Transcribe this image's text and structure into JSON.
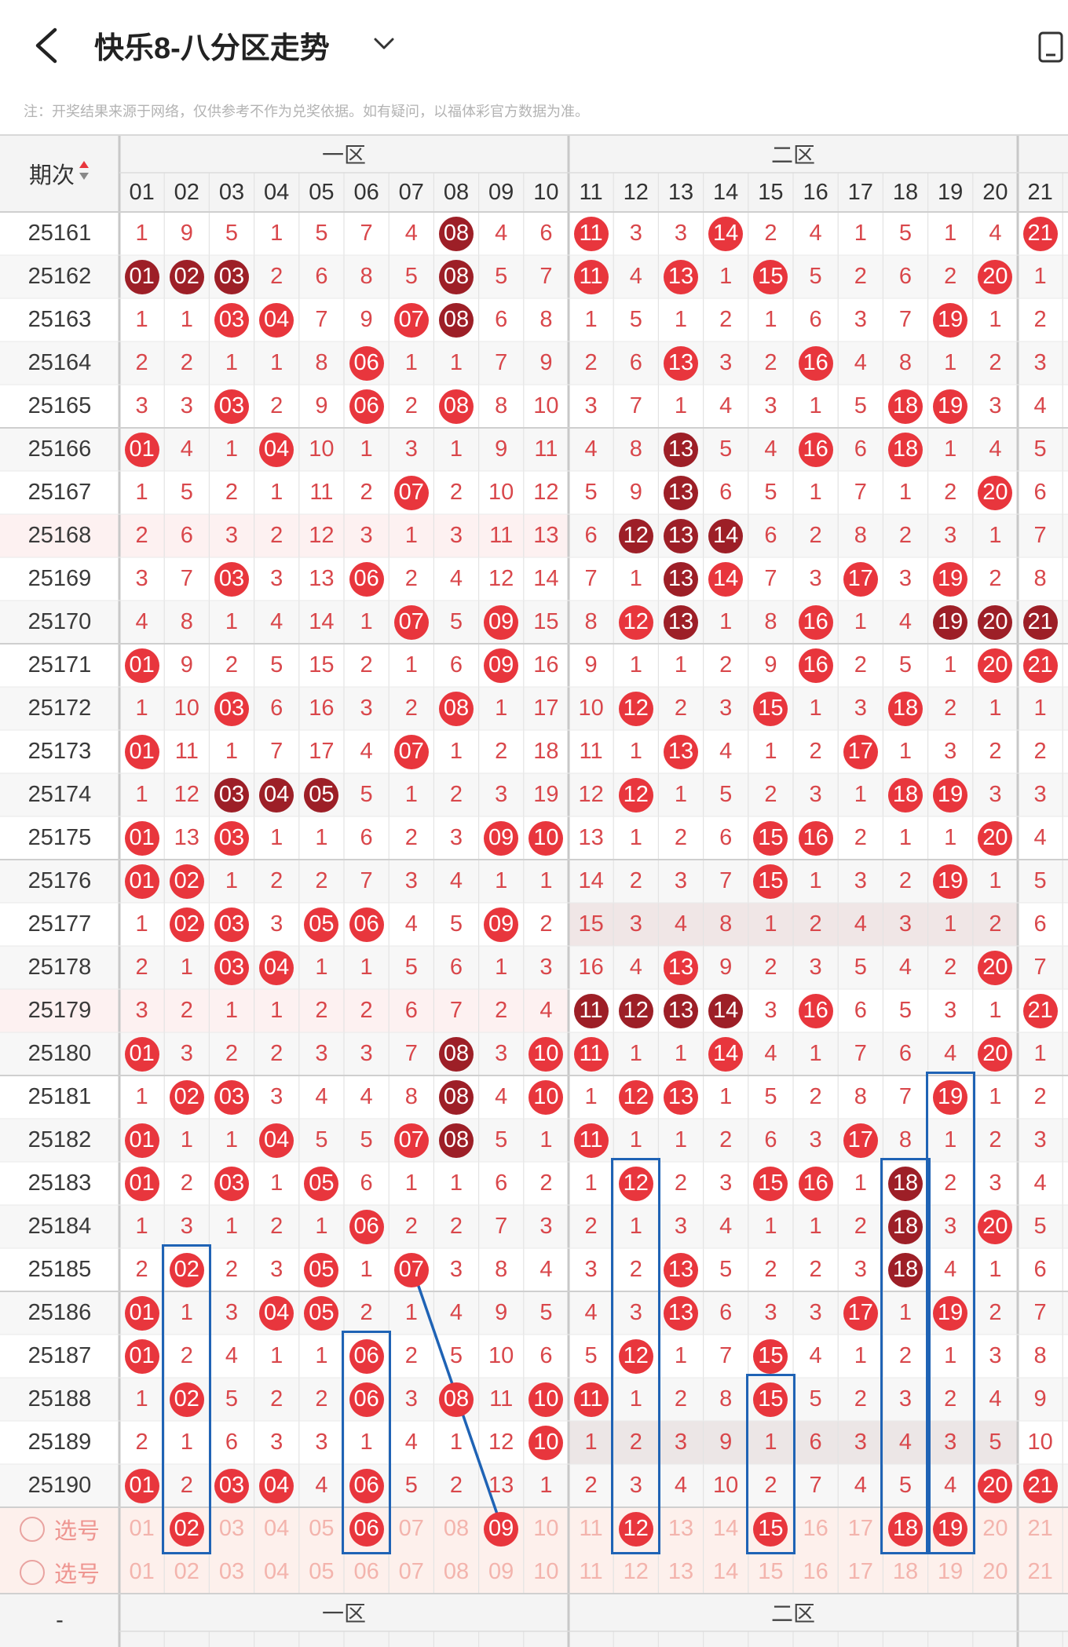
{
  "header": {
    "title": "快乐8-八分区走势",
    "back_icon": "back-arrow-icon",
    "dropdown_icon": "chevron-down-icon",
    "right_icon": "device-icon"
  },
  "notice": "注：开奖结果来源于网络，仅供参考不作为兑奖依据。如有疑问，以福体彩官方数据为准。",
  "table": {
    "period_header": "期次",
    "sort_icon": "sort-updown-icon",
    "zone1_label": "一区",
    "zone2_label": "二区",
    "columns": [
      "01",
      "02",
      "03",
      "04",
      "05",
      "06",
      "07",
      "08",
      "09",
      "10",
      "11",
      "12",
      "13",
      "14",
      "15",
      "16",
      "17",
      "18",
      "19",
      "20",
      "21"
    ],
    "rows": [
      {
        "period": "25161",
        "cells": [
          "1",
          "9",
          "5",
          "1",
          "5",
          "7",
          "4",
          "08d",
          "4",
          "6",
          "11r",
          "3",
          "3",
          "14r",
          "2",
          "4",
          "1",
          "5",
          "1",
          "4",
          "21r"
        ]
      },
      {
        "period": "25162",
        "cells": [
          "01d",
          "02d",
          "03d",
          "2",
          "6",
          "8",
          "5",
          "08d",
          "5",
          "7",
          "11r",
          "4",
          "13r",
          "1",
          "15r",
          "5",
          "2",
          "6",
          "2",
          "20r",
          "1"
        ]
      },
      {
        "period": "25163",
        "cells": [
          "1",
          "1",
          "03r",
          "04r",
          "7",
          "9",
          "07r",
          "08d",
          "6",
          "8",
          "1",
          "5",
          "1",
          "2",
          "1",
          "6",
          "3",
          "7",
          "19r",
          "1",
          "2"
        ]
      },
      {
        "period": "25164",
        "cells": [
          "2",
          "2",
          "1",
          "1",
          "8",
          "06r",
          "1",
          "1",
          "7",
          "9",
          "2",
          "6",
          "13r",
          "3",
          "2",
          "16r",
          "4",
          "8",
          "1",
          "2",
          "3"
        ]
      },
      {
        "period": "25165",
        "cells": [
          "3",
          "3",
          "03r",
          "2",
          "9",
          "06r",
          "2",
          "08r",
          "8",
          "10",
          "3",
          "7",
          "1",
          "4",
          "3",
          "1",
          "5",
          "18r",
          "19r",
          "3",
          "4"
        ]
      },
      {
        "period": "25166",
        "cells": [
          "01r",
          "4",
          "1",
          "04r",
          "10",
          "1",
          "3",
          "1",
          "9",
          "11",
          "4",
          "8",
          "13d",
          "5",
          "4",
          "16r",
          "6",
          "18r",
          "1",
          "4",
          "5"
        ]
      },
      {
        "period": "25167",
        "cells": [
          "1",
          "5",
          "2",
          "1",
          "11",
          "2",
          "07r",
          "2",
          "10",
          "12",
          "5",
          "9",
          "13d",
          "6",
          "5",
          "1",
          "7",
          "1",
          "2",
          "20r",
          "6"
        ]
      },
      {
        "period": "25168",
        "cells": [
          "2",
          "6",
          "3",
          "2",
          "12",
          "3",
          "1",
          "3",
          "11",
          "13",
          "6",
          "12d",
          "13d",
          "14d",
          "6",
          "2",
          "8",
          "2",
          "3",
          "1",
          "7"
        ]
      },
      {
        "period": "25169",
        "cells": [
          "3",
          "7",
          "03r",
          "3",
          "13",
          "06r",
          "2",
          "4",
          "12",
          "14",
          "7",
          "1",
          "13d",
          "14r",
          "7",
          "3",
          "17r",
          "3",
          "19r",
          "2",
          "8"
        ]
      },
      {
        "period": "25170",
        "cells": [
          "4",
          "8",
          "1",
          "4",
          "14",
          "1",
          "07r",
          "5",
          "09r",
          "15",
          "8",
          "12r",
          "13d",
          "1",
          "8",
          "16r",
          "1",
          "4",
          "19d",
          "20d",
          "21d"
        ]
      },
      {
        "period": "25171",
        "cells": [
          "01r",
          "9",
          "2",
          "5",
          "15",
          "2",
          "1",
          "6",
          "09r",
          "16",
          "9",
          "1",
          "1",
          "2",
          "9",
          "16r",
          "2",
          "5",
          "1",
          "20r",
          "21r"
        ]
      },
      {
        "period": "25172",
        "cells": [
          "1",
          "10",
          "03r",
          "6",
          "16",
          "3",
          "2",
          "08r",
          "1",
          "17",
          "10",
          "12r",
          "2",
          "3",
          "15r",
          "1",
          "3",
          "18r",
          "2",
          "1",
          "1"
        ]
      },
      {
        "period": "25173",
        "cells": [
          "01r",
          "11",
          "1",
          "7",
          "17",
          "4",
          "07r",
          "1",
          "2",
          "18",
          "11",
          "1",
          "13r",
          "4",
          "1",
          "2",
          "17r",
          "1",
          "3",
          "2",
          "2"
        ]
      },
      {
        "period": "25174",
        "cells": [
          "1",
          "12",
          "03d",
          "04d",
          "05d",
          "5",
          "1",
          "2",
          "3",
          "19",
          "12",
          "12r",
          "1",
          "5",
          "2",
          "3",
          "1",
          "18r",
          "19r",
          "3",
          "3"
        ]
      },
      {
        "period": "25175",
        "cells": [
          "01r",
          "13",
          "03r",
          "1",
          "1",
          "6",
          "2",
          "3",
          "09r",
          "10r",
          "13",
          "1",
          "2",
          "6",
          "15r",
          "16r",
          "2",
          "1",
          "1",
          "20r",
          "4"
        ]
      },
      {
        "period": "25176",
        "cells": [
          "01r",
          "02r",
          "1",
          "2",
          "2",
          "7",
          "3",
          "4",
          "1",
          "1",
          "14",
          "2",
          "3",
          "7",
          "15r",
          "1",
          "3",
          "2",
          "19r",
          "1",
          "5"
        ]
      },
      {
        "period": "25177",
        "cells": [
          "1",
          "02r",
          "03r",
          "3",
          "05r",
          "06r",
          "4",
          "5",
          "09r",
          "2",
          "15",
          "3",
          "4",
          "8",
          "1",
          "2",
          "4",
          "3",
          "1",
          "2",
          "6"
        ]
      },
      {
        "period": "25178",
        "cells": [
          "2",
          "1",
          "03r",
          "04r",
          "1",
          "1",
          "5",
          "6",
          "1",
          "3",
          "16",
          "4",
          "13r",
          "9",
          "2",
          "3",
          "5",
          "4",
          "2",
          "20r",
          "7"
        ]
      },
      {
        "period": "25179",
        "cells": [
          "3",
          "2",
          "1",
          "1",
          "2",
          "2",
          "6",
          "7",
          "2",
          "4",
          "11d",
          "12d",
          "13d",
          "14d",
          "3",
          "16r",
          "6",
          "5",
          "3",
          "1",
          "21r"
        ]
      },
      {
        "period": "25180",
        "cells": [
          "01r",
          "3",
          "2",
          "2",
          "3",
          "3",
          "7",
          "08d",
          "3",
          "10r",
          "11r",
          "1",
          "1",
          "14r",
          "4",
          "1",
          "7",
          "6",
          "4",
          "20r",
          "1"
        ]
      },
      {
        "period": "25181",
        "cells": [
          "1",
          "02r",
          "03r",
          "3",
          "4",
          "4",
          "8",
          "08d",
          "4",
          "10r",
          "1",
          "12r",
          "13r",
          "1",
          "5",
          "2",
          "8",
          "7",
          "19r",
          "1",
          "2"
        ]
      },
      {
        "period": "25182",
        "cells": [
          "01r",
          "1",
          "1",
          "04r",
          "5",
          "5",
          "07r",
          "08d",
          "5",
          "1",
          "11r",
          "1",
          "1",
          "2",
          "6",
          "3",
          "17r",
          "8",
          "1",
          "2",
          "3"
        ]
      },
      {
        "period": "25183",
        "cells": [
          "01r",
          "2",
          "03r",
          "1",
          "05r",
          "6",
          "1",
          "1",
          "6",
          "2",
          "1",
          "12r",
          "2",
          "3",
          "15r",
          "16r",
          "1",
          "18d",
          "2",
          "3",
          "4"
        ]
      },
      {
        "period": "25184",
        "cells": [
          "1",
          "3",
          "1",
          "2",
          "1",
          "06r",
          "2",
          "2",
          "7",
          "3",
          "2",
          "1",
          "3",
          "4",
          "1",
          "1",
          "2",
          "18d",
          "3",
          "20r",
          "5"
        ]
      },
      {
        "period": "25185",
        "cells": [
          "2",
          "02r",
          "2",
          "3",
          "05r",
          "1",
          "07r",
          "3",
          "8",
          "4",
          "3",
          "2",
          "13r",
          "5",
          "2",
          "2",
          "3",
          "18d",
          "4",
          "1",
          "6"
        ]
      },
      {
        "period": "25186",
        "cells": [
          "01r",
          "1",
          "3",
          "04r",
          "05r",
          "2",
          "1",
          "4",
          "9",
          "5",
          "4",
          "3",
          "13r",
          "6",
          "3",
          "3",
          "17r",
          "1",
          "19r",
          "2",
          "7"
        ]
      },
      {
        "period": "25187",
        "cells": [
          "01r",
          "2",
          "4",
          "1",
          "1",
          "06r",
          "2",
          "5",
          "10",
          "6",
          "5",
          "12r",
          "1",
          "7",
          "15r",
          "4",
          "1",
          "2",
          "1",
          "3",
          "8"
        ]
      },
      {
        "period": "25188",
        "cells": [
          "1",
          "02r",
          "5",
          "2",
          "2",
          "06r",
          "3",
          "08r",
          "11",
          "10r",
          "11r",
          "1",
          "2",
          "8",
          "15r",
          "5",
          "2",
          "3",
          "2",
          "4",
          "9"
        ]
      },
      {
        "period": "25189",
        "cells": [
          "2",
          "1",
          "6",
          "3",
          "3",
          "1",
          "4",
          "1",
          "12",
          "10r",
          "1",
          "2",
          "3",
          "9",
          "1",
          "6",
          "3",
          "4",
          "3",
          "5",
          "10"
        ]
      },
      {
        "period": "25190",
        "cells": [
          "01r",
          "2",
          "03r",
          "04r",
          "4",
          "06r",
          "5",
          "2",
          "13",
          "1",
          "2",
          "3",
          "4",
          "10",
          "2",
          "7",
          "4",
          "5",
          "4",
          "20r",
          "21r"
        ]
      }
    ],
    "pick_label": "选号",
    "pick_row1": [
      "01",
      "02r",
      "03",
      "04",
      "05",
      "06r",
      "07",
      "08",
      "09r",
      "10",
      "11",
      "12r",
      "13",
      "14",
      "15r",
      "16",
      "17",
      "18r",
      "19r",
      "20",
      "21"
    ],
    "pick_row2": [
      "01",
      "02",
      "03",
      "04",
      "05",
      "06",
      "07",
      "08",
      "09",
      "10",
      "11",
      "12",
      "13",
      "14",
      "15",
      "16",
      "17",
      "18",
      "19",
      "20",
      "21"
    ],
    "footer_period": "-",
    "footer_zone1": "一区",
    "footer_zone2": "二区"
  },
  "colors": {
    "red": "#e8363d",
    "dark": "#9d1f27",
    "line": "#1f63b5"
  }
}
